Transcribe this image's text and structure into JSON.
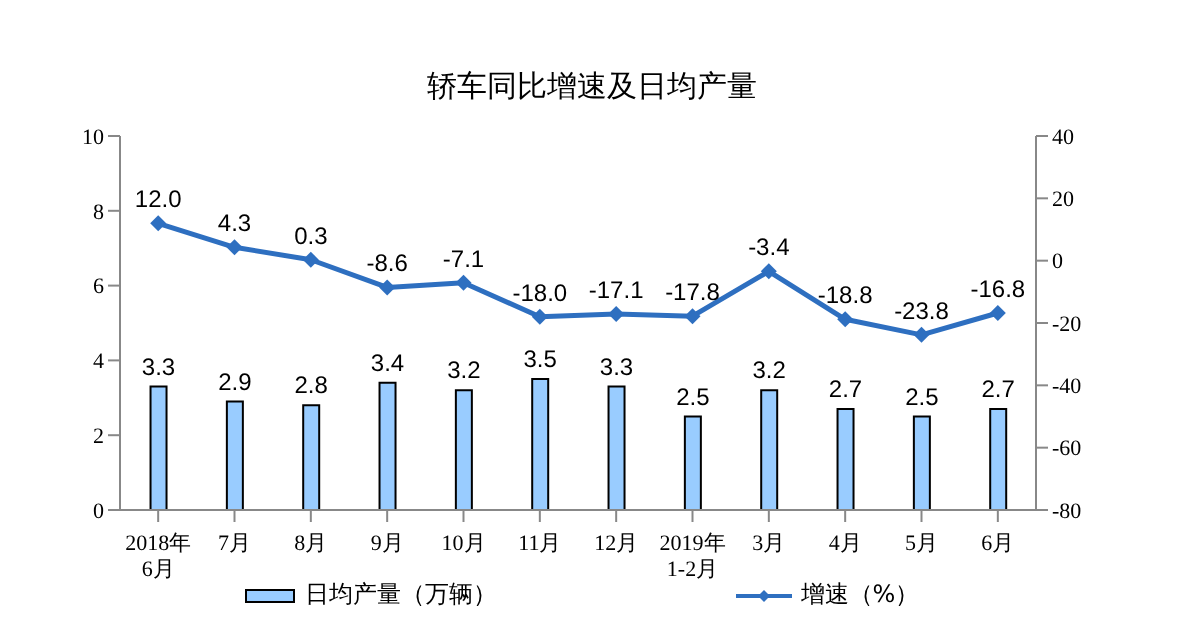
{
  "chart_data": {
    "type": "bar",
    "title": "轿车同比增速及日均产量",
    "categories": [
      "2018年\n6月",
      "7月",
      "8月",
      "9月",
      "10月",
      "11月",
      "12月",
      "2019年\n1-2月",
      "3月",
      "4月",
      "5月",
      "6月"
    ],
    "series": [
      {
        "name": "日均产量（万辆）",
        "color": "#99ccff",
        "values": [
          3.3,
          2.9,
          2.8,
          3.4,
          3.2,
          3.5,
          3.3,
          2.5,
          3.2,
          2.7,
          2.5,
          2.7
        ],
        "value_labels": [
          "3.3",
          "2.9",
          "2.8",
          "3.4",
          "3.2",
          "3.5",
          "3.3",
          "2.5",
          "3.2",
          "2.7",
          "2.5",
          "2.7"
        ]
      },
      {
        "name": "增速（%）",
        "type": "line",
        "axis": "y2",
        "color": "#2e6fc0",
        "marker": "diamond",
        "values": [
          12.0,
          4.3,
          0.3,
          -8.6,
          -7.1,
          -18.0,
          -17.1,
          -17.8,
          -3.4,
          -18.8,
          -23.8,
          -16.8
        ],
        "value_labels": [
          "12.0",
          "4.3",
          "0.3",
          "-8.6",
          "-7.1",
          "-18.0",
          "-17.1",
          "-17.8",
          "-3.4",
          "-18.8",
          "-23.8",
          "-16.8"
        ]
      }
    ],
    "ylim": [
      0,
      10
    ],
    "yticks": [
      0,
      2,
      4,
      6,
      8,
      10
    ],
    "y2lim": [
      -80,
      40
    ],
    "y2ticks": [
      -80,
      -60,
      -40,
      -20,
      0,
      20,
      40
    ],
    "legend": "bottom"
  }
}
